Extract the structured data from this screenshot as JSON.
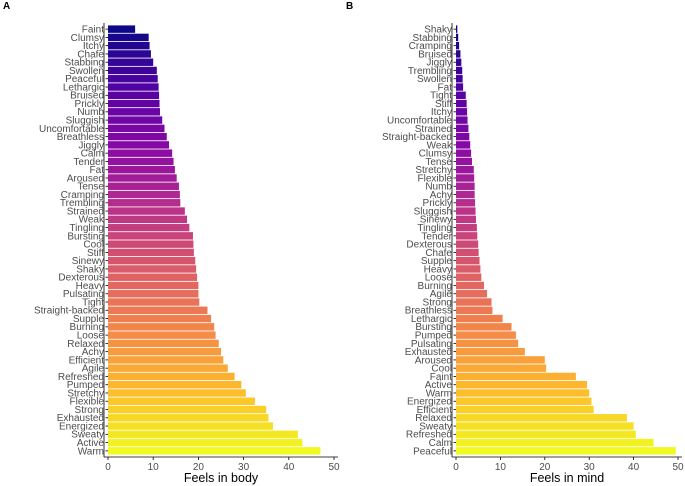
{
  "chart_data": [
    {
      "type": "bar",
      "orientation": "horizontal",
      "panel_label": "A",
      "xlabel": "Feels in body",
      "ylabel": "",
      "xlim": [
        0,
        50
      ],
      "xticks": [
        0,
        10,
        20,
        30,
        40,
        50
      ],
      "grid": false,
      "categories": [
        "Faint",
        "Clumsy",
        "Itchy",
        "Chafe",
        "Stabbing",
        "Swollen",
        "Peaceful",
        "Lethargic",
        "Bruised",
        "Prickly",
        "Numb",
        "Sluggish",
        "Uncomfortable",
        "Breathless",
        "Jiggly",
        "Calm",
        "Tender",
        "Fat",
        "Aroused",
        "Tense",
        "Cramping",
        "Trembling",
        "Strained",
        "Weak",
        "Tingling",
        "Bursting",
        "Cool",
        "Stiff",
        "Sinewy",
        "Shaky",
        "Dexterous",
        "Heavy",
        "Pulsating",
        "Tight",
        "Straight-backed",
        "Supple",
        "Burning",
        "Loose",
        "Relaxed",
        "Achy",
        "Efficient",
        "Agile",
        "Refreshed",
        "Pumped",
        "Stretchy",
        "Flexible",
        "Strong",
        "Exhausted",
        "Energized",
        "Sweaty",
        "Active",
        "Warm"
      ],
      "values": [
        6,
        9,
        9.2,
        9.5,
        10,
        10.8,
        11,
        11.2,
        11.3,
        11.4,
        11.5,
        12,
        12.5,
        13,
        13.5,
        14.2,
        14.5,
        14.8,
        15.2,
        15.7,
        15.9,
        16,
        17,
        17.5,
        18,
        18.8,
        18.9,
        19,
        19.3,
        19.5,
        19.7,
        20,
        20,
        20.2,
        22,
        22.8,
        23.5,
        23.8,
        24.5,
        25,
        25.5,
        26.5,
        28,
        29.5,
        30.5,
        32.5,
        35,
        35.5,
        36.5,
        42,
        43,
        47
      ]
    },
    {
      "type": "bar",
      "orientation": "horizontal",
      "panel_label": "B",
      "xlabel": "Feels in mind",
      "ylabel": "",
      "xlim": [
        0,
        50
      ],
      "xticks": [
        0,
        10,
        20,
        30,
        40,
        50
      ],
      "grid": false,
      "categories": [
        "Shaky",
        "Stabbing",
        "Cramping",
        "Bruised",
        "Jiggly",
        "Trembling",
        "Swollen",
        "Fat",
        "Tight",
        "Stiff",
        "Itchy",
        "Uncomfortable",
        "Strained",
        "Straight-backed",
        "Weak",
        "Clumsy",
        "Tense",
        "Stretchy",
        "Flexible",
        "Numb",
        "Achy",
        "Prickly",
        "Sluggish",
        "Sinewy",
        "Tingling",
        "Tender",
        "Dexterous",
        "Chafe",
        "Supple",
        "Heavy",
        "Loose",
        "Burning",
        "Agile",
        "Strong",
        "Breathless",
        "Lethargic",
        "Bursting",
        "Pumped",
        "Pulsating",
        "Exhausted",
        "Aroused",
        "Cool",
        "Faint",
        "Active",
        "Warm",
        "Energized",
        "Efficient",
        "Relaxed",
        "Sweaty",
        "Refreshed",
        "Calm",
        "Peaceful"
      ],
      "values": [
        0.3,
        0.5,
        0.7,
        1,
        1.2,
        1.4,
        1.5,
        1.6,
        2.2,
        2.4,
        2.5,
        2.6,
        2.8,
        3,
        3.2,
        3.4,
        3.6,
        4,
        4.1,
        4.2,
        4.2,
        4.3,
        4.4,
        4.5,
        4.7,
        4.8,
        5,
        5.1,
        5.3,
        5.5,
        5.7,
        6.3,
        7,
        8,
        8.2,
        10.5,
        12.5,
        13.5,
        14,
        15.5,
        20,
        20.3,
        27,
        29.5,
        30,
        30.5,
        31,
        38.5,
        40,
        40.5,
        44.5,
        49.5
      ]
    }
  ]
}
